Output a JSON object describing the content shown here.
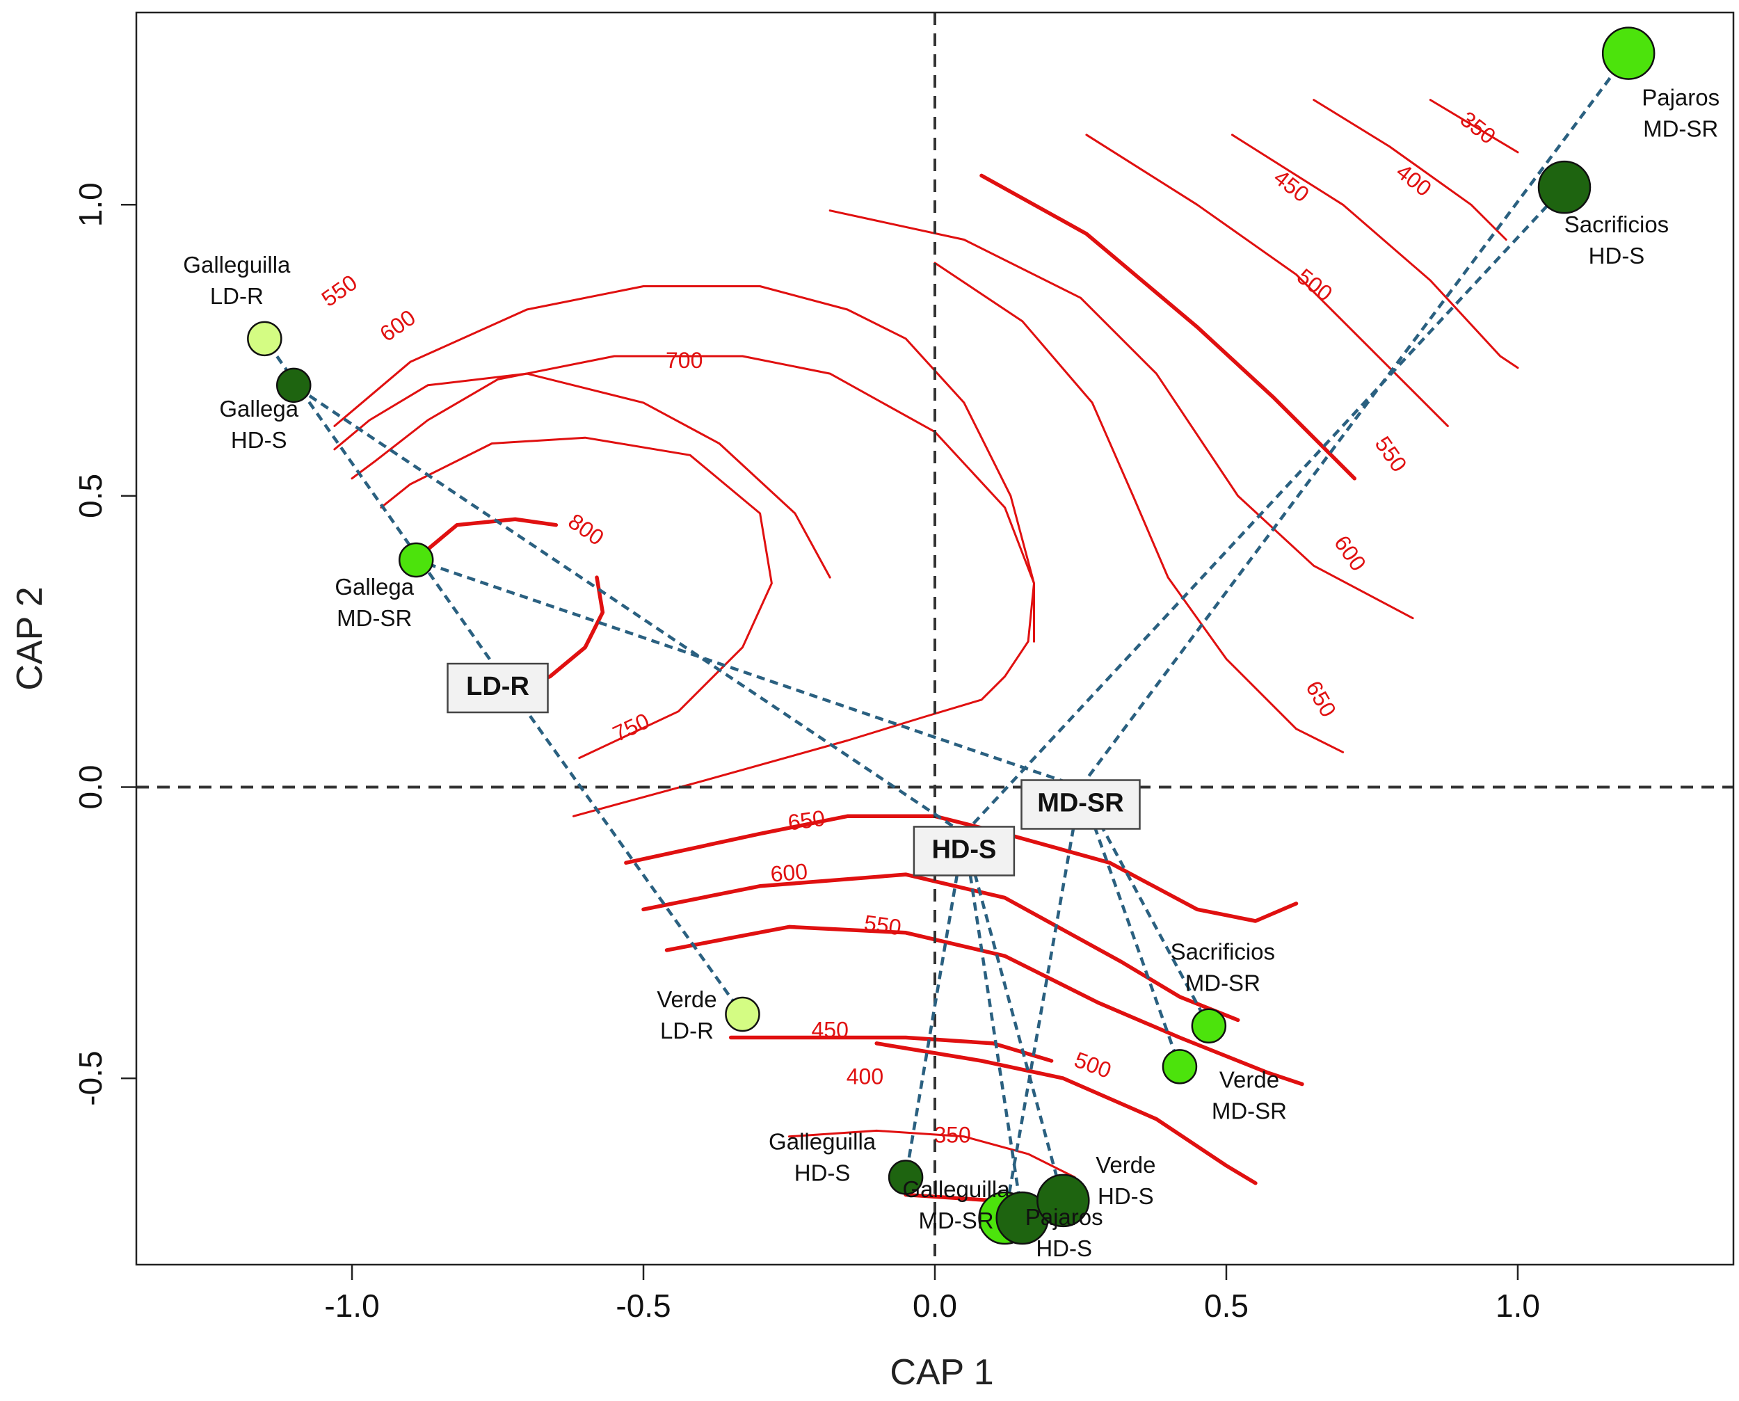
{
  "chart_data": {
    "type": "scatter",
    "xlabel": "CAP 1",
    "ylabel": "CAP 2",
    "xlim": [
      -1.37,
      1.37
    ],
    "ylim": [
      -0.82,
      1.33
    ],
    "x_ticks": [
      -1.0,
      -0.5,
      0.0,
      0.5,
      1.0
    ],
    "x_tick_labels": [
      "-1.0",
      "-0.5",
      "0.0",
      "0.5",
      "1.0"
    ],
    "y_ticks": [
      -0.5,
      0.0,
      0.5,
      1.0
    ],
    "y_tick_labels": [
      "-0.5",
      "0.0",
      "0.5",
      "1.0"
    ],
    "reference_lines": {
      "x": 0,
      "y": 0,
      "style": "dashed"
    },
    "colors": {
      "LD": "#d4fc83",
      "MD": "#4ce30c",
      "HD": "#1e6410",
      "contour": "#e01010",
      "spider": "#2a6080",
      "axis": "#333333"
    },
    "centroids": [
      {
        "id": "ld-r",
        "label": "LD-R",
        "x": -0.75,
        "y": 0.2
      },
      {
        "id": "hd-s",
        "label": "HD-S",
        "x": 0.05,
        "y": -0.08
      },
      {
        "id": "md-sr",
        "label": "MD-SR",
        "x": 0.25,
        "y": 0.0
      }
    ],
    "points": [
      {
        "id": "galleguilla-ld-r",
        "site": "Galleguilla",
        "treatment": "LD-R",
        "group": "ld-r",
        "x": -1.15,
        "y": 0.77,
        "size": "small"
      },
      {
        "id": "gallega-hd-s",
        "site": "Gallega",
        "treatment": "HD-S",
        "group": "hd-s",
        "x": -1.1,
        "y": 0.69,
        "size": "small"
      },
      {
        "id": "gallega-md-sr",
        "site": "Gallega",
        "treatment": "MD-SR",
        "group": "md-sr",
        "x": -0.89,
        "y": 0.39,
        "size": "small"
      },
      {
        "id": "verde-ld-r",
        "site": "Verde",
        "treatment": "LD-R",
        "group": "ld-r",
        "x": -0.33,
        "y": -0.39,
        "size": "small"
      },
      {
        "id": "galleguilla-hd-s",
        "site": "Galleguilla",
        "treatment": "HD-S",
        "group": "hd-s",
        "x": -0.05,
        "y": -0.67,
        "size": "small"
      },
      {
        "id": "galleguilla-md-sr",
        "site": "Galleguilla",
        "treatment": "MD-SR",
        "group": "md-sr",
        "x": 0.12,
        "y": -0.74,
        "size": "medium"
      },
      {
        "id": "pajaros-hd-s",
        "site": "Pajaros",
        "treatment": "HD-S",
        "group": "hd-s",
        "x": 0.15,
        "y": -0.74,
        "size": "medium"
      },
      {
        "id": "verde-hd-s",
        "site": "Verde",
        "treatment": "HD-S",
        "group": "hd-s",
        "x": 0.22,
        "y": -0.71,
        "size": "medium"
      },
      {
        "id": "verde-md-sr",
        "site": "Verde",
        "treatment": "MD-SR",
        "group": "md-sr",
        "x": 0.42,
        "y": -0.48,
        "size": "small"
      },
      {
        "id": "sacrificios-md-sr",
        "site": "Sacrificios",
        "treatment": "MD-SR",
        "group": "md-sr",
        "x": 0.47,
        "y": -0.41,
        "size": "small"
      },
      {
        "id": "sacrificios-hd-s",
        "site": "Sacrificios",
        "treatment": "HD-S",
        "group": "hd-s",
        "x": 1.08,
        "y": 1.03,
        "size": "medium"
      },
      {
        "id": "pajaros-md-sr",
        "site": "Pajaros",
        "treatment": "MD-SR",
        "group": "md-sr",
        "x": 1.19,
        "y": 1.26,
        "size": "medium"
      }
    ],
    "contours": [
      {
        "id": "upper-350",
        "level": "350",
        "bold": false,
        "points": [
          [
            0.85,
            1.18
          ],
          [
            1.0,
            1.09
          ]
        ]
      },
      {
        "id": "upper-400",
        "level": "400",
        "bold": false,
        "points": [
          [
            0.65,
            1.18
          ],
          [
            0.78,
            1.1
          ],
          [
            0.92,
            1.0
          ],
          [
            0.98,
            0.94
          ]
        ]
      },
      {
        "id": "upper-450",
        "level": "450",
        "bold": false,
        "points": [
          [
            0.51,
            1.12
          ],
          [
            0.7,
            1.0
          ],
          [
            0.85,
            0.87
          ],
          [
            0.97,
            0.74
          ],
          [
            1.0,
            0.72
          ]
        ]
      },
      {
        "id": "upper-500",
        "level": "500",
        "bold": false,
        "points": [
          [
            0.26,
            1.12
          ],
          [
            0.45,
            1.0
          ],
          [
            0.62,
            0.88
          ],
          [
            0.75,
            0.75
          ],
          [
            0.88,
            0.62
          ]
        ]
      },
      {
        "id": "upper-550",
        "level": "550",
        "bold": true,
        "points": [
          [
            0.08,
            1.05
          ],
          [
            0.26,
            0.95
          ],
          [
            0.45,
            0.79
          ],
          [
            0.58,
            0.67
          ],
          [
            0.72,
            0.53
          ]
        ]
      },
      {
        "id": "upper-600",
        "level": "600",
        "bold": false,
        "points": [
          [
            -0.18,
            0.99
          ],
          [
            0.05,
            0.94
          ],
          [
            0.25,
            0.84
          ],
          [
            0.38,
            0.71
          ],
          [
            0.52,
            0.5
          ],
          [
            0.65,
            0.38
          ],
          [
            0.82,
            0.29
          ]
        ]
      },
      {
        "id": "upper-650",
        "level": "650",
        "bold": false,
        "points": [
          [
            0.0,
            0.9
          ],
          [
            0.15,
            0.8
          ],
          [
            0.27,
            0.66
          ],
          [
            0.34,
            0.5
          ],
          [
            0.4,
            0.36
          ],
          [
            0.5,
            0.22
          ],
          [
            0.62,
            0.1
          ],
          [
            0.7,
            0.06
          ]
        ]
      },
      {
        "id": "lower-350",
        "level": "350",
        "bold": true,
        "points": [
          [
            -0.05,
            -0.7
          ],
          [
            0.1,
            -0.71
          ],
          [
            0.2,
            -0.73
          ]
        ]
      },
      {
        "id": "lower-400",
        "level": "400",
        "bold": false,
        "points": [
          [
            -0.25,
            -0.6
          ],
          [
            -0.1,
            -0.59
          ],
          [
            0.05,
            -0.6
          ],
          [
            0.16,
            -0.63
          ],
          [
            0.24,
            -0.67
          ]
        ]
      },
      {
        "id": "lower-450",
        "level": "450",
        "bold": true,
        "points": [
          [
            -0.35,
            -0.43
          ],
          [
            -0.2,
            -0.43
          ],
          [
            -0.05,
            -0.43
          ],
          [
            0.1,
            -0.44
          ],
          [
            0.2,
            -0.47
          ]
        ]
      },
      {
        "id": "lower-500",
        "level": "500",
        "bold": true,
        "points": [
          [
            -0.1,
            -0.44
          ],
          [
            0.08,
            -0.47
          ],
          [
            0.22,
            -0.5
          ],
          [
            0.38,
            -0.57
          ],
          [
            0.5,
            -0.65
          ],
          [
            0.55,
            -0.68
          ]
        ]
      },
      {
        "id": "lower-550",
        "level": "550",
        "bold": true,
        "points": [
          [
            -0.46,
            -0.28
          ],
          [
            -0.25,
            -0.24
          ],
          [
            -0.05,
            -0.25
          ],
          [
            0.12,
            -0.29
          ],
          [
            0.28,
            -0.37
          ],
          [
            0.42,
            -0.43
          ],
          [
            0.57,
            -0.49
          ],
          [
            0.63,
            -0.51
          ]
        ]
      },
      {
        "id": "lower-600",
        "level": "600",
        "bold": true,
        "points": [
          [
            -0.5,
            -0.21
          ],
          [
            -0.3,
            -0.17
          ],
          [
            -0.05,
            -0.15
          ],
          [
            0.12,
            -0.19
          ],
          [
            0.32,
            -0.3
          ],
          [
            0.42,
            -0.36
          ],
          [
            0.52,
            -0.4
          ]
        ]
      },
      {
        "id": "lower-650",
        "level": "650",
        "bold": true,
        "points": [
          [
            -0.53,
            -0.13
          ],
          [
            -0.3,
            -0.08
          ],
          [
            -0.15,
            -0.05
          ],
          [
            0.0,
            -0.05
          ],
          [
            0.12,
            -0.08
          ],
          [
            0.3,
            -0.13
          ],
          [
            0.45,
            -0.21
          ],
          [
            0.55,
            -0.23
          ],
          [
            0.62,
            -0.2
          ]
        ]
      },
      {
        "id": "mid-750",
        "level": "750",
        "bold": false,
        "points": [
          [
            -0.61,
            0.05
          ],
          [
            -0.44,
            0.13
          ],
          [
            -0.33,
            0.24
          ],
          [
            -0.28,
            0.35
          ],
          [
            -0.3,
            0.47
          ],
          [
            -0.42,
            0.57
          ],
          [
            -0.6,
            0.6
          ],
          [
            -0.76,
            0.59
          ],
          [
            -0.9,
            0.52
          ],
          [
            -0.95,
            0.48
          ]
        ]
      },
      {
        "id": "mid-700",
        "level": "700",
        "bold": false,
        "points": [
          [
            -0.62,
            -0.05
          ],
          [
            -0.4,
            0.01
          ],
          [
            -0.15,
            0.08
          ],
          [
            -0.02,
            0.12
          ],
          [
            0.08,
            0.15
          ],
          [
            0.12,
            0.19
          ],
          [
            0.16,
            0.25
          ],
          [
            0.17,
            0.35
          ],
          [
            0.12,
            0.48
          ],
          [
            0.0,
            0.61
          ],
          [
            -0.18,
            0.71
          ],
          [
            -0.33,
            0.74
          ],
          [
            -0.55,
            0.74
          ],
          [
            -0.75,
            0.7
          ],
          [
            -0.87,
            0.63
          ],
          [
            -0.96,
            0.56
          ],
          [
            -1.0,
            0.53
          ]
        ]
      },
      {
        "id": "outer-loop",
        "level": "",
        "bold": false,
        "points": [
          [
            -0.18,
            0.36
          ],
          [
            -0.24,
            0.47
          ],
          [
            -0.37,
            0.59
          ],
          [
            -0.5,
            0.66
          ],
          [
            -0.7,
            0.71
          ],
          [
            -0.87,
            0.69
          ],
          [
            -0.97,
            0.63
          ],
          [
            -1.03,
            0.58
          ]
        ]
      },
      {
        "id": "upper-arc",
        "level": "",
        "bold": false,
        "points": [
          [
            -1.03,
            0.62
          ],
          [
            -0.9,
            0.73
          ],
          [
            -0.7,
            0.82
          ],
          [
            -0.5,
            0.86
          ],
          [
            -0.3,
            0.86
          ],
          [
            -0.15,
            0.82
          ],
          [
            -0.05,
            0.77
          ],
          [
            0.05,
            0.66
          ],
          [
            0.13,
            0.5
          ],
          [
            0.17,
            0.35
          ],
          [
            0.17,
            0.25
          ]
        ]
      },
      {
        "id": "inner-800",
        "level": "800",
        "bold": true,
        "points": [
          [
            -0.88,
            0.4
          ],
          [
            -0.82,
            0.45
          ],
          [
            -0.72,
            0.46
          ],
          [
            -0.65,
            0.45
          ]
        ]
      },
      {
        "id": "inner-800b",
        "level": "",
        "bold": true,
        "points": [
          [
            -0.58,
            0.36
          ],
          [
            -0.57,
            0.3
          ],
          [
            -0.6,
            0.24
          ],
          [
            -0.66,
            0.19
          ],
          [
            -0.74,
            0.16
          ]
        ]
      }
    ],
    "contour_labels": [
      {
        "text": "350",
        "x": 0.93,
        "y": 1.13,
        "angle": 38
      },
      {
        "text": "400",
        "x": 0.82,
        "y": 1.04,
        "angle": 38
      },
      {
        "text": "450",
        "x": 0.61,
        "y": 1.03,
        "angle": 38
      },
      {
        "text": "500",
        "x": 0.65,
        "y": 0.86,
        "angle": 38
      },
      {
        "text": "550",
        "x": 0.78,
        "y": 0.57,
        "angle": 55
      },
      {
        "text": "600",
        "x": 0.71,
        "y": 0.4,
        "angle": 55
      },
      {
        "text": "650",
        "x": 0.66,
        "y": 0.15,
        "angle": 60
      },
      {
        "text": "550",
        "x": -1.02,
        "y": 0.85,
        "angle": -35
      },
      {
        "text": "600",
        "x": -0.92,
        "y": 0.79,
        "angle": -35
      },
      {
        "text": "700",
        "x": -0.43,
        "y": 0.73,
        "angle": 0
      },
      {
        "text": "800",
        "x": -0.6,
        "y": 0.44,
        "angle": 35
      },
      {
        "text": "750",
        "x": -0.52,
        "y": 0.1,
        "angle": -25
      },
      {
        "text": "650",
        "x": -0.22,
        "y": -0.06,
        "angle": -8
      },
      {
        "text": "600",
        "x": -0.25,
        "y": -0.15,
        "angle": -5
      },
      {
        "text": "550",
        "x": -0.09,
        "y": -0.24,
        "angle": 8
      },
      {
        "text": "450",
        "x": -0.18,
        "y": -0.42,
        "angle": 0
      },
      {
        "text": "400",
        "x": -0.12,
        "y": -0.5,
        "angle": 0
      },
      {
        "text": "350",
        "x": 0.03,
        "y": -0.6,
        "angle": 0
      },
      {
        "text": "500",
        "x": 0.27,
        "y": -0.48,
        "angle": 20
      }
    ],
    "labels_text": {
      "galleguilla-ld-r": [
        "Galleguilla",
        "LD-R"
      ],
      "gallega-hd-s": [
        "Gallega",
        "HD-S"
      ],
      "gallega-md-sr": [
        "Gallega",
        "MD-SR"
      ],
      "verde-ld-r": [
        "Verde",
        "LD-R"
      ],
      "galleguilla-hd-s": [
        "Galleguilla",
        "HD-S"
      ],
      "galleguilla-md-sr": [
        "Galleguilla",
        "MD-SR"
      ],
      "pajaros-hd-s": [
        "Pajaros",
        "HD-S"
      ],
      "verde-hd-s": [
        "Verde",
        "HD-S"
      ],
      "verde-md-sr": [
        "Verde",
        "MD-SR"
      ],
      "sacrificios-md-sr": [
        "Sacrificios",
        "MD-SR"
      ],
      "sacrificios-hd-s": [
        "Sacrificios",
        "HD-S"
      ],
      "pajaros-md-sr": [
        "Pajaros",
        "MD-SR"
      ]
    }
  }
}
